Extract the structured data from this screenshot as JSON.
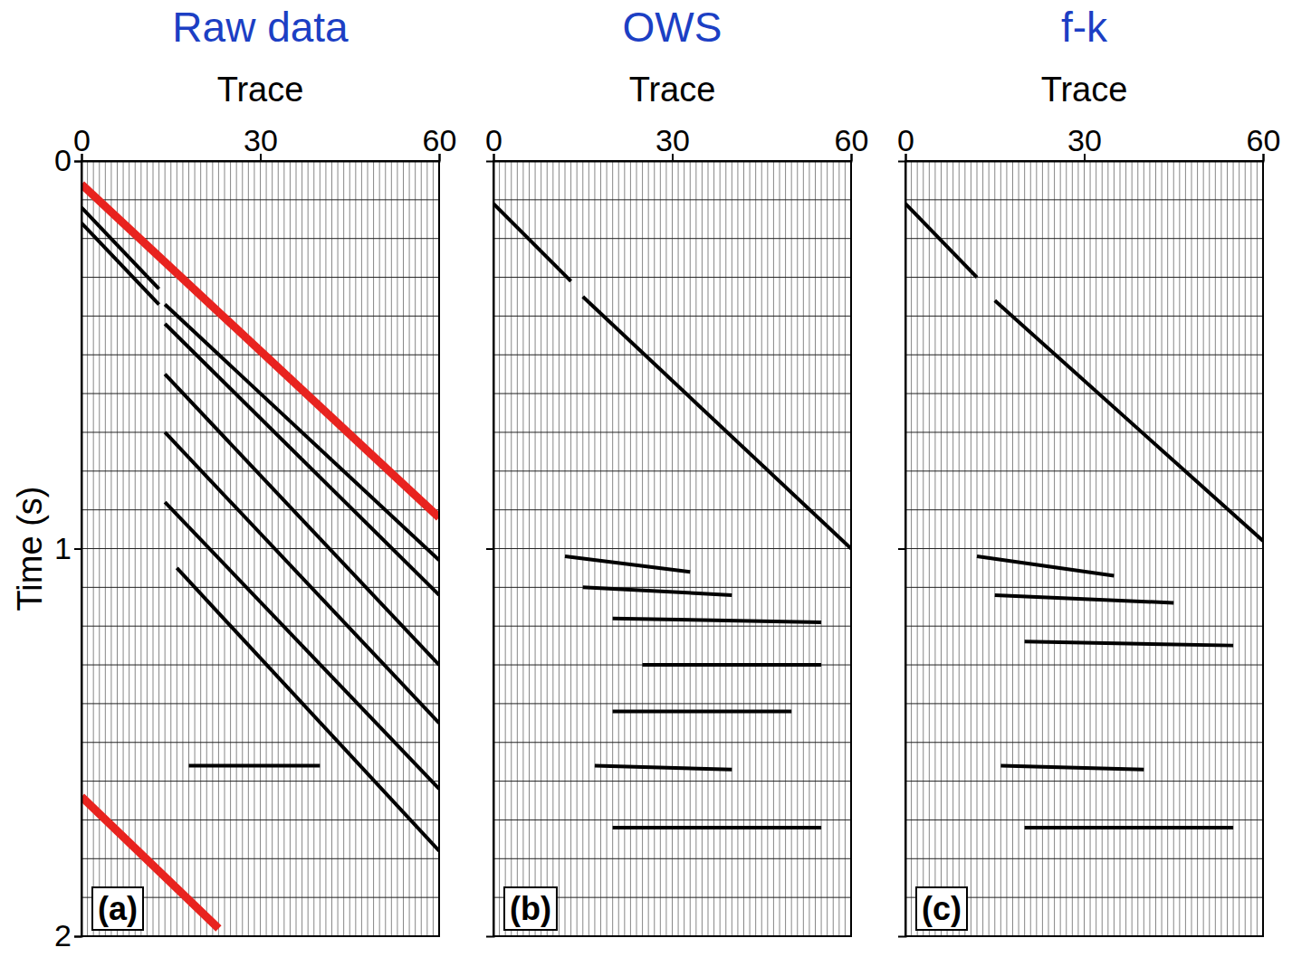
{
  "chart_data": [
    {
      "type": "wiggle",
      "title": "Raw data",
      "x_label": "Trace",
      "y_label": "Time (s)",
      "label": "(a)",
      "xlim": [
        0,
        60
      ],
      "xticks": [
        0,
        30,
        60
      ],
      "ylim": [
        0,
        2
      ],
      "yticks": [
        0,
        1,
        2
      ],
      "grid": true,
      "trace_positions": [
        0,
        1,
        2,
        3,
        4,
        5,
        6,
        7,
        8,
        9,
        10,
        11,
        12,
        13,
        14,
        15,
        16,
        17,
        18,
        19,
        20,
        21,
        22,
        23,
        24,
        25,
        26,
        27,
        28,
        29,
        30,
        31,
        32,
        33,
        34,
        35,
        36,
        37,
        38,
        39,
        40,
        41,
        42,
        43,
        44,
        45,
        46,
        47,
        48,
        49,
        50,
        51,
        52,
        53,
        54,
        55,
        56,
        57,
        58,
        59,
        60
      ],
      "timing_lines": [
        0.1,
        0.2,
        0.3,
        0.4,
        0.5,
        0.6,
        0.7,
        0.8,
        0.9,
        1.0,
        1.1,
        1.2,
        1.3,
        1.4,
        1.5,
        1.6,
        1.7,
        1.8,
        1.9
      ],
      "events": [
        {
          "x": [
            0,
            13
          ],
          "y": [
            0.12,
            0.33
          ]
        },
        {
          "x": [
            0,
            13
          ],
          "y": [
            0.16,
            0.37
          ]
        },
        {
          "x": [
            14,
            60
          ],
          "y": [
            0.37,
            1.03
          ]
        },
        {
          "x": [
            14,
            60
          ],
          "y": [
            0.42,
            1.12
          ]
        },
        {
          "x": [
            14,
            60
          ],
          "y": [
            0.55,
            1.3
          ]
        },
        {
          "x": [
            14,
            60
          ],
          "y": [
            0.7,
            1.45
          ]
        },
        {
          "x": [
            14,
            60
          ],
          "y": [
            0.88,
            1.62
          ]
        },
        {
          "x": [
            16,
            60
          ],
          "y": [
            1.05,
            1.78
          ]
        },
        {
          "x": [
            18,
            40
          ],
          "y": [
            1.56,
            1.56
          ]
        }
      ],
      "annotations": [
        {
          "x": [
            0,
            60
          ],
          "y": [
            0.06,
            0.92
          ],
          "color": "#e8231f"
        },
        {
          "x": [
            0,
            23
          ],
          "y": [
            1.64,
            1.98
          ],
          "color": "#e8231f"
        }
      ]
    },
    {
      "type": "wiggle",
      "title": "OWS",
      "x_label": "Trace",
      "label": "(b)",
      "xlim": [
        0,
        60
      ],
      "xticks": [
        0,
        30,
        60
      ],
      "ylim": [
        0,
        2
      ],
      "yticks": [
        1
      ],
      "tick_labels": "x",
      "grid": true,
      "trace_positions": [
        0,
        1,
        2,
        3,
        4,
        5,
        6,
        7,
        8,
        9,
        10,
        11,
        12,
        13,
        14,
        15,
        16,
        17,
        18,
        19,
        20,
        21,
        22,
        23,
        24,
        25,
        26,
        27,
        28,
        29,
        30,
        31,
        32,
        33,
        34,
        35,
        36,
        37,
        38,
        39,
        40,
        41,
        42,
        43,
        44,
        45,
        46,
        47,
        48,
        49,
        50,
        51,
        52,
        53,
        54,
        55,
        56,
        57,
        58,
        59,
        60
      ],
      "timing_lines": [
        0.1,
        0.2,
        0.3,
        0.4,
        0.5,
        0.6,
        0.7,
        0.8,
        0.9,
        1.0,
        1.1,
        1.2,
        1.3,
        1.4,
        1.5,
        1.6,
        1.7,
        1.8,
        1.9
      ],
      "events": [
        {
          "x": [
            0,
            13
          ],
          "y": [
            0.11,
            0.31
          ]
        },
        {
          "x": [
            15,
            60
          ],
          "y": [
            0.35,
            1.0
          ]
        },
        {
          "x": [
            12,
            33
          ],
          "y": [
            1.02,
            1.06
          ]
        },
        {
          "x": [
            15,
            40
          ],
          "y": [
            1.1,
            1.12
          ]
        },
        {
          "x": [
            20,
            55
          ],
          "y": [
            1.18,
            1.19
          ]
        },
        {
          "x": [
            25,
            55
          ],
          "y": [
            1.3,
            1.3
          ]
        },
        {
          "x": [
            20,
            50
          ],
          "y": [
            1.42,
            1.42
          ]
        },
        {
          "x": [
            17,
            40
          ],
          "y": [
            1.56,
            1.57
          ]
        },
        {
          "x": [
            20,
            55
          ],
          "y": [
            1.72,
            1.72
          ]
        }
      ]
    },
    {
      "type": "wiggle",
      "title": "f-k",
      "x_label": "Trace",
      "label": "(c)",
      "xlim": [
        0,
        60
      ],
      "xticks": [
        0,
        30,
        60
      ],
      "ylim": [
        0,
        2
      ],
      "yticks": [
        1
      ],
      "tick_labels": "x",
      "grid": true,
      "trace_positions": [
        0,
        1,
        2,
        3,
        4,
        5,
        6,
        7,
        8,
        9,
        10,
        11,
        12,
        13,
        14,
        15,
        16,
        17,
        18,
        19,
        20,
        21,
        22,
        23,
        24,
        25,
        26,
        27,
        28,
        29,
        30,
        31,
        32,
        33,
        34,
        35,
        36,
        37,
        38,
        39,
        40,
        41,
        42,
        43,
        44,
        45,
        46,
        47,
        48,
        49,
        50,
        51,
        52,
        53,
        54,
        55,
        56,
        57,
        58,
        59,
        60
      ],
      "timing_lines": [
        0.1,
        0.2,
        0.3,
        0.4,
        0.5,
        0.6,
        0.7,
        0.8,
        0.9,
        1.0,
        1.1,
        1.2,
        1.3,
        1.4,
        1.5,
        1.6,
        1.7,
        1.8,
        1.9
      ],
      "events": [
        {
          "x": [
            0,
            12
          ],
          "y": [
            0.11,
            0.3
          ]
        },
        {
          "x": [
            15,
            60
          ],
          "y": [
            0.36,
            0.98
          ]
        },
        {
          "x": [
            12,
            35
          ],
          "y": [
            1.02,
            1.07
          ]
        },
        {
          "x": [
            15,
            45
          ],
          "y": [
            1.12,
            1.14
          ]
        },
        {
          "x": [
            20,
            55
          ],
          "y": [
            1.24,
            1.25
          ]
        },
        {
          "x": [
            16,
            40
          ],
          "y": [
            1.56,
            1.57
          ]
        },
        {
          "x": [
            20,
            55
          ],
          "y": [
            1.72,
            1.72
          ]
        }
      ]
    }
  ]
}
